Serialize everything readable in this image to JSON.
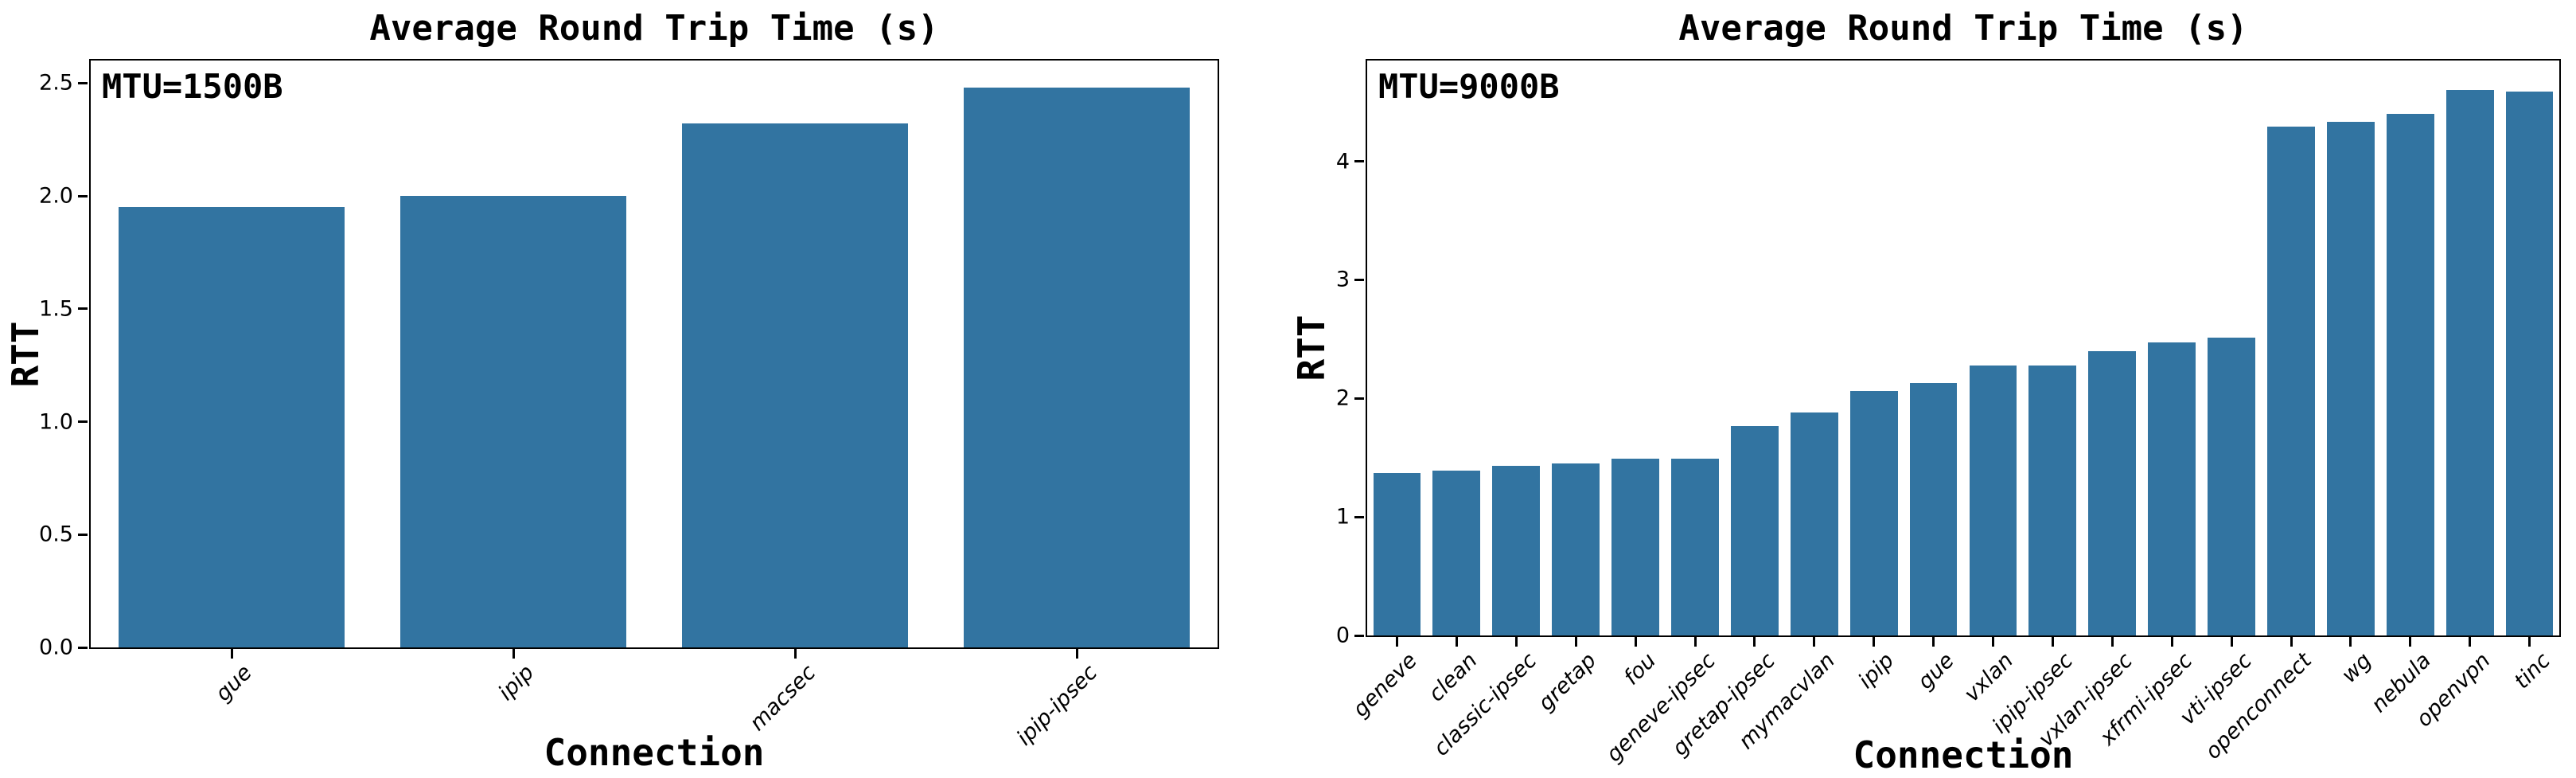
{
  "page": {
    "background": "#ffffff",
    "text_color": "#000000"
  },
  "chart_data": [
    {
      "type": "bar",
      "title": "Average Round Trip Time (s)",
      "annotation": "MTU=1500B",
      "xlabel": "Connection",
      "ylabel": "RTT",
      "categories": [
        "gue",
        "ipip",
        "macsec",
        "ipip-ipsec"
      ],
      "values": [
        1.95,
        2.0,
        2.32,
        2.48
      ],
      "ylim": [
        0,
        2.6
      ],
      "yticks": [
        {
          "value": 0.0,
          "label": "0.0"
        },
        {
          "value": 0.5,
          "label": "0.5"
        },
        {
          "value": 1.0,
          "label": "1.0"
        },
        {
          "value": 1.5,
          "label": "1.5"
        },
        {
          "value": 2.0,
          "label": "2.0"
        },
        {
          "value": 2.5,
          "label": "2.5"
        }
      ],
      "bar_color": "#3274a1",
      "grid": false,
      "legend_position": "none"
    },
    {
      "type": "bar",
      "title": "Average Round Trip Time (s)",
      "annotation": "MTU=9000B",
      "xlabel": "Connection",
      "ylabel": "RTT",
      "categories": [
        "geneve",
        "clean",
        "classic-ipsec",
        "gretap",
        "fou",
        "geneve-ipsec",
        "gretap-ipsec",
        "mymacvlan",
        "ipip",
        "gue",
        "vxlan",
        "ipip-ipsec",
        "vxlan-ipsec",
        "xfrmi-ipsec",
        "vti-ipsec",
        "openconnect",
        "wg",
        "nebula",
        "openvpn",
        "tinc"
      ],
      "values": [
        1.37,
        1.39,
        1.43,
        1.45,
        1.49,
        1.49,
        1.77,
        1.88,
        2.06,
        2.13,
        2.28,
        2.28,
        2.4,
        2.47,
        2.51,
        4.29,
        4.33,
        4.4,
        4.6,
        4.59
      ],
      "ylim": [
        0,
        4.85
      ],
      "yticks": [
        {
          "value": 0,
          "label": "0"
        },
        {
          "value": 1,
          "label": "1"
        },
        {
          "value": 2,
          "label": "2"
        },
        {
          "value": 3,
          "label": "3"
        },
        {
          "value": 4,
          "label": "4"
        }
      ],
      "bar_color": "#3274a1",
      "grid": false,
      "legend_position": "none"
    }
  ]
}
